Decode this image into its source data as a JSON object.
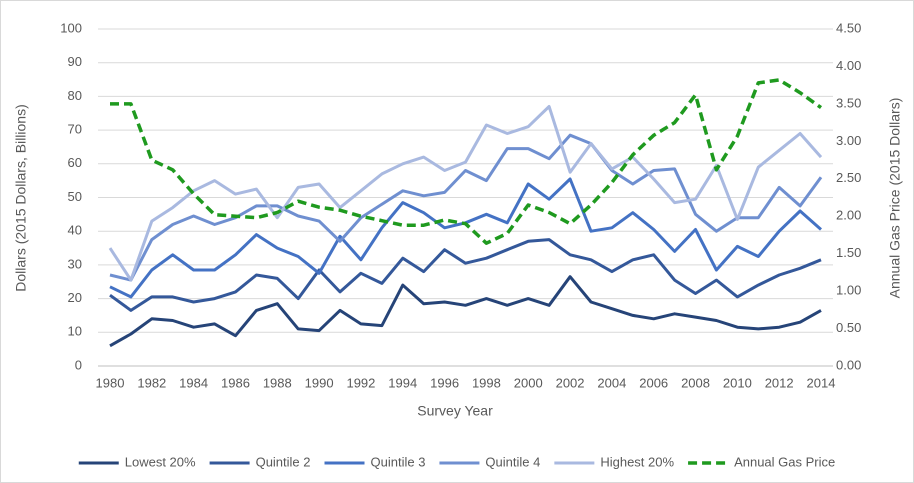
{
  "chart_data": {
    "type": "line",
    "x_label": "Survey Year",
    "y_label": "Dollars (2015 Dollars, Billions)",
    "y2_label": "Annual Gas Price (2015 Dollars)",
    "x": [
      1980,
      1981,
      1982,
      1983,
      1984,
      1985,
      1986,
      1987,
      1988,
      1989,
      1990,
      1991,
      1992,
      1993,
      1994,
      1995,
      1996,
      1997,
      1998,
      1999,
      2000,
      2001,
      2002,
      2003,
      2004,
      2005,
      2006,
      2007,
      2008,
      2009,
      2010,
      2011,
      2012,
      2013,
      2014
    ],
    "xlim": [
      1980,
      2014
    ],
    "xticks": [
      1980,
      1982,
      1984,
      1986,
      1988,
      1990,
      1992,
      1994,
      1996,
      1998,
      2000,
      2002,
      2004,
      2006,
      2008,
      2010,
      2012,
      2014
    ],
    "ylim": [
      0,
      100
    ],
    "yticks": [
      0,
      10,
      20,
      30,
      40,
      50,
      60,
      70,
      80,
      90,
      100
    ],
    "y2lim": [
      0,
      4.5
    ],
    "y2ticks": [
      {
        "value": 0,
        "label": "0.00"
      },
      {
        "value": 0.5,
        "label": "0.50"
      },
      {
        "value": 1,
        "label": "1.00"
      },
      {
        "value": 1.5,
        "label": "1.50"
      },
      {
        "value": 2,
        "label": "2.00"
      },
      {
        "value": 2.5,
        "label": "2.50"
      },
      {
        "value": 3,
        "label": "3.00"
      },
      {
        "value": 3.5,
        "label": "3.50"
      },
      {
        "value": 4,
        "label": "4.00"
      },
      {
        "value": 4.5,
        "label": "4.50"
      }
    ],
    "grid": true,
    "legend": "bottom",
    "series": [
      {
        "name": "Lowest 20%",
        "color": "#264478",
        "values": [
          6,
          9.5,
          14,
          13.5,
          11.5,
          12.5,
          9,
          16.5,
          18.5,
          11,
          10.5,
          16.5,
          12.5,
          12,
          24,
          18.5,
          19,
          18,
          20,
          18,
          20,
          18,
          26.5,
          19,
          17,
          15,
          14,
          15.5,
          14.5,
          13.5,
          11.5,
          11,
          11.5,
          13,
          16.5
        ]
      },
      {
        "name": "Quintile 2",
        "color": "#34589a",
        "values": [
          21,
          16.5,
          20.5,
          20.5,
          19,
          20,
          22,
          27,
          26,
          20,
          28.5,
          22,
          27.5,
          24.5,
          32,
          28,
          34.5,
          30.5,
          32,
          34.5,
          37,
          37.5,
          33,
          31.5,
          28,
          31.5,
          33,
          25.5,
          21.5,
          25.5,
          20.5,
          24,
          27,
          29,
          31.5
        ]
      },
      {
        "name": "Quintile 3",
        "color": "#4472c4",
        "values": [
          23.5,
          20.5,
          28.5,
          33,
          28.5,
          28.5,
          33,
          39,
          35,
          32.5,
          27.5,
          38.5,
          31.5,
          41,
          48.5,
          45.5,
          41,
          42.5,
          45,
          42.5,
          54,
          49.5,
          55.5,
          40,
          41,
          45.5,
          40.5,
          34,
          40.5,
          28.5,
          35.5,
          32.5,
          40,
          46,
          40.5
        ]
      },
      {
        "name": "Quintile 4",
        "color": "#6f8fd0",
        "values": [
          27,
          25.5,
          37.5,
          42,
          44.5,
          42,
          44,
          47.5,
          47.5,
          44.5,
          43,
          37,
          44,
          48,
          52,
          50.5,
          51.5,
          58,
          55,
          64.5,
          64.5,
          61.5,
          68.5,
          66,
          58,
          54,
          58,
          58.5,
          45,
          40,
          44,
          44,
          53,
          47.5,
          56
        ]
      },
      {
        "name": "Highest 20%",
        "color": "#a9b9e0",
        "values": [
          35,
          25.5,
          43,
          47,
          52,
          55,
          51,
          52.5,
          44,
          53,
          54,
          47,
          52,
          57,
          60,
          62,
          58,
          60.5,
          71.5,
          69,
          71,
          77,
          57.5,
          66,
          58.5,
          62,
          55.5,
          48.5,
          49.5,
          59.5,
          43.5,
          59,
          64,
          69,
          62
        ]
      },
      {
        "name": "Annual Gas Price",
        "color": "#1f9a1f",
        "axis": "y2",
        "dash": "dashed",
        "values": [
          3.5,
          3.5,
          2.75,
          2.62,
          2.3,
          2.02,
          2.0,
          1.98,
          2.05,
          2.2,
          2.12,
          2.08,
          2.0,
          1.94,
          1.88,
          1.88,
          1.95,
          1.9,
          1.64,
          1.77,
          2.15,
          2.05,
          1.9,
          2.15,
          2.45,
          2.82,
          3.08,
          3.25,
          3.62,
          2.62,
          3.07,
          3.78,
          3.82,
          3.65,
          3.45
        ]
      }
    ]
  }
}
